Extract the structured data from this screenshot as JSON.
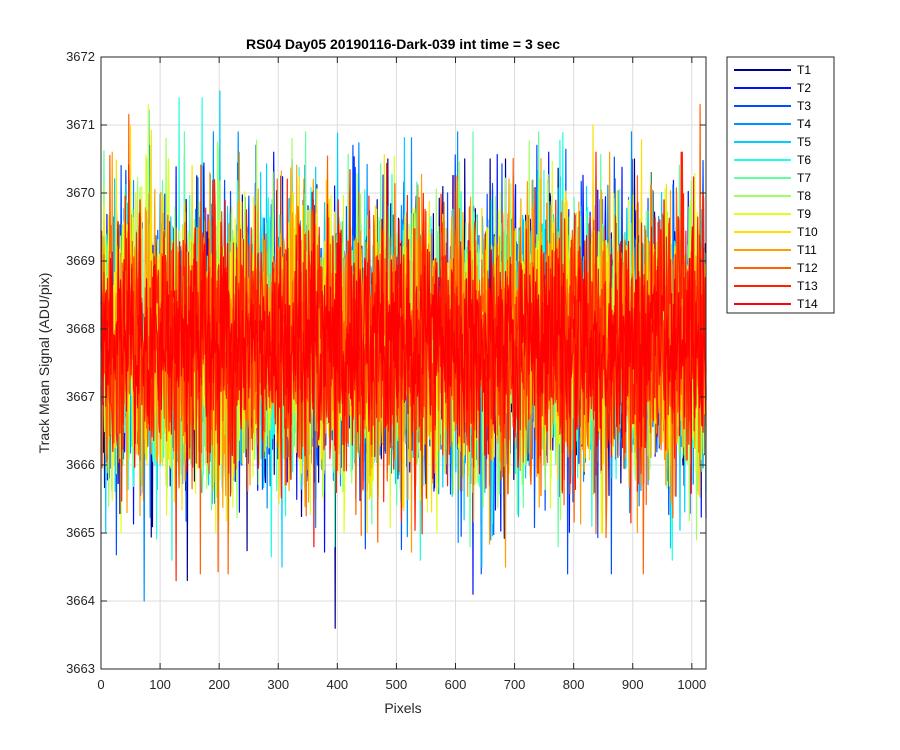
{
  "chart_data": {
    "type": "line",
    "title": "RS04 Day05 20190116-Dark-039 int time = 3 sec",
    "xlabel": "Pixels",
    "ylabel": "Track Mean Signal (ADU/pix)",
    "xlim": [
      0,
      1024
    ],
    "ylim": [
      3663,
      3672
    ],
    "xticks": [
      0,
      100,
      200,
      300,
      400,
      500,
      600,
      700,
      800,
      900,
      1000
    ],
    "yticks": [
      3663,
      3664,
      3665,
      3666,
      3667,
      3668,
      3669,
      3670,
      3671,
      3672
    ],
    "grid": true,
    "legend_position": "outside-top-right",
    "n_points": 1024,
    "mean_level": 3667.8,
    "series": [
      {
        "name": "T1",
        "color": "#00008F",
        "sigma": 1.0,
        "min": 3663.6,
        "max": 3670.5
      },
      {
        "name": "T2",
        "color": "#0010FF",
        "sigma": 1.0,
        "min": 3664.1,
        "max": 3670.6
      },
      {
        "name": "T3",
        "color": "#0050FF",
        "sigma": 1.0,
        "min": 3664.4,
        "max": 3670.7
      },
      {
        "name": "T4",
        "color": "#0090FF",
        "sigma": 1.0,
        "min": 3664.0,
        "max": 3670.9
      },
      {
        "name": "T5",
        "color": "#00D0FF",
        "sigma": 1.0,
        "min": 3664.5,
        "max": 3671.5
      },
      {
        "name": "T6",
        "color": "#20FFDF",
        "sigma": 1.0,
        "min": 3664.6,
        "max": 3671.4
      },
      {
        "name": "T7",
        "color": "#60FF9F",
        "sigma": 1.0,
        "min": 3664.8,
        "max": 3670.9
      },
      {
        "name": "T8",
        "color": "#9FFF60",
        "sigma": 1.0,
        "min": 3664.9,
        "max": 3670.8
      },
      {
        "name": "T9",
        "color": "#DFFF20",
        "sigma": 1.0,
        "min": 3665.0,
        "max": 3671.3
      },
      {
        "name": "T10",
        "color": "#FFE000",
        "sigma": 1.0,
        "min": 3665.0,
        "max": 3671.0
      },
      {
        "name": "T11",
        "color": "#FFA000",
        "sigma": 1.0,
        "min": 3664.5,
        "max": 3670.6
      },
      {
        "name": "T12",
        "color": "#FF6000",
        "sigma": 1.0,
        "min": 3664.4,
        "max": 3671.3
      },
      {
        "name": "T13",
        "color": "#FF2000",
        "sigma": 1.0,
        "min": 3664.3,
        "max": 3670.6
      },
      {
        "name": "T14",
        "color": "#FF0000",
        "sigma": 0.75,
        "min": 3664.8,
        "max": 3669.9
      }
    ]
  }
}
